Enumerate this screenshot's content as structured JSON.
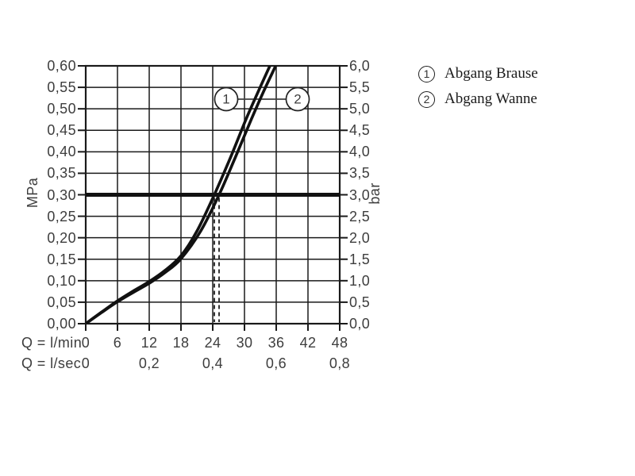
{
  "page": {
    "background": "#ffffff"
  },
  "legend": {
    "position": "top-right",
    "items": [
      {
        "marker": "1",
        "label": "Abgang Brause"
      },
      {
        "marker": "2",
        "label": "Abgang Wanne"
      }
    ]
  },
  "chart_data": {
    "type": "line",
    "title": "",
    "x_axis": {
      "caption_lmin": "Q = l/min",
      "caption_lsec": "Q = l/sec",
      "range_lmin": [
        0,
        48
      ],
      "grid_step_lmin": 6,
      "ticks_lmin": [
        "0",
        "6",
        "12",
        "18",
        "24",
        "30",
        "36",
        "42",
        "48"
      ],
      "ticks_lsec": [
        {
          "q_lmin": 0,
          "label": "0"
        },
        {
          "q_lmin": 12,
          "label": "0,2"
        },
        {
          "q_lmin": 24,
          "label": "0,4"
        },
        {
          "q_lmin": 36,
          "label": "0,6"
        },
        {
          "q_lmin": 48,
          "label": "0,8"
        }
      ]
    },
    "y_axis_left": {
      "label": "MPa",
      "range_mpa": [
        0,
        0.6
      ],
      "grid_step_mpa": 0.05,
      "ticks": [
        "0,60",
        "0,55",
        "0,50",
        "0,45",
        "0,40",
        "0,35",
        "0,30",
        "0,25",
        "0,20",
        "0,15",
        "0,10",
        "0,05",
        "0,00"
      ]
    },
    "y_axis_right": {
      "label": "bar",
      "range_bar": [
        0,
        6
      ],
      "ticks": [
        "6,0",
        "5,5",
        "5,0",
        "4,5",
        "4,0",
        "3,5",
        "3,0",
        "2,5",
        "2,0",
        "1,5",
        "1,0",
        "0,5",
        "0,0"
      ]
    },
    "series": [
      {
        "name": "Abgang Brause",
        "marker": "1",
        "points_lmin_mpa": [
          [
            0,
            0
          ],
          [
            3,
            0.027
          ],
          [
            6,
            0.053
          ],
          [
            9,
            0.076
          ],
          [
            12,
            0.098
          ],
          [
            15,
            0.124
          ],
          [
            18,
            0.158
          ],
          [
            21,
            0.215
          ],
          [
            24.3,
            0.3
          ],
          [
            27.3,
            0.385
          ],
          [
            30.3,
            0.476
          ],
          [
            32.6,
            0.54
          ],
          [
            34.8,
            0.6
          ]
        ]
      },
      {
        "name": "Abgang Wanne",
        "marker": "2",
        "points_lmin_mpa": [
          [
            0,
            0
          ],
          [
            3,
            0.026
          ],
          [
            6,
            0.051
          ],
          [
            9,
            0.073
          ],
          [
            12,
            0.094
          ],
          [
            15,
            0.119
          ],
          [
            18,
            0.151
          ],
          [
            21.7,
            0.215
          ],
          [
            25.2,
            0.3
          ],
          [
            28.2,
            0.385
          ],
          [
            31.3,
            0.476
          ],
          [
            33.6,
            0.54
          ],
          [
            35.9,
            0.6
          ]
        ]
      }
    ],
    "reference_line": {
      "mpa": 0.3,
      "bar": 3.0
    },
    "guides_dashed_lmin": [
      24.3,
      25.2
    ],
    "grid": true,
    "legend_position": "top-right",
    "colors": {
      "line": "#111111",
      "grid": "#1a1a1a",
      "reference_line": "#111111",
      "text": "#3d3d3d"
    }
  }
}
